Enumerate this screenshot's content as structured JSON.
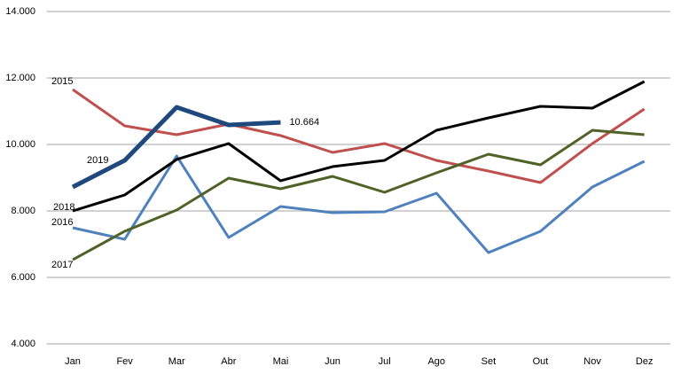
{
  "chart_data": {
    "type": "line",
    "categories": [
      "Jan",
      "Fev",
      "Mar",
      "Abr",
      "Mai",
      "Jun",
      "Jul",
      "Ago",
      "Set",
      "Out",
      "Nov",
      "Dez"
    ],
    "series": [
      {
        "name": "2015",
        "color": "#c0504d",
        "values": [
          11653,
          10560,
          10293,
          10613,
          10267,
          9760,
          10027,
          9520,
          9200,
          8853,
          10027,
          11067
        ]
      },
      {
        "name": "2016",
        "color": "#4f81bd",
        "values": [
          7493,
          7147,
          9653,
          7200,
          8133,
          7947,
          7973,
          8533,
          6747,
          7387,
          8720,
          9493
        ]
      },
      {
        "name": "2017",
        "color": "#4f6228",
        "values": [
          6533,
          7387,
          8027,
          8987,
          8667,
          9040,
          8560,
          9147,
          9707,
          9387,
          10427,
          10293
        ]
      },
      {
        "name": "2018",
        "color": "#000000",
        "values": [
          8000,
          8480,
          9547,
          10027,
          8907,
          9333,
          9520,
          10427,
          10800,
          11147,
          11093,
          11893
        ]
      },
      {
        "name": "2019",
        "color": "#1f497d",
        "values": [
          8720,
          9520,
          11120,
          10587,
          10664,
          null,
          null,
          null,
          null,
          null,
          null,
          null
        ],
        "value_labels": [
          null,
          null,
          null,
          null,
          "10.664",
          null,
          null,
          null,
          null,
          null,
          null,
          null
        ]
      }
    ],
    "ylim": [
      4000,
      14000
    ],
    "yticks": [
      {
        "value": 4000,
        "label": "4.000"
      },
      {
        "value": 6000,
        "label": "6.000"
      },
      {
        "value": 8000,
        "label": "8.000"
      },
      {
        "value": 10000,
        "label": "10.000"
      },
      {
        "value": 12000,
        "label": "12.000"
      },
      {
        "value": 14000,
        "label": "14.000"
      }
    ],
    "grid": true
  }
}
